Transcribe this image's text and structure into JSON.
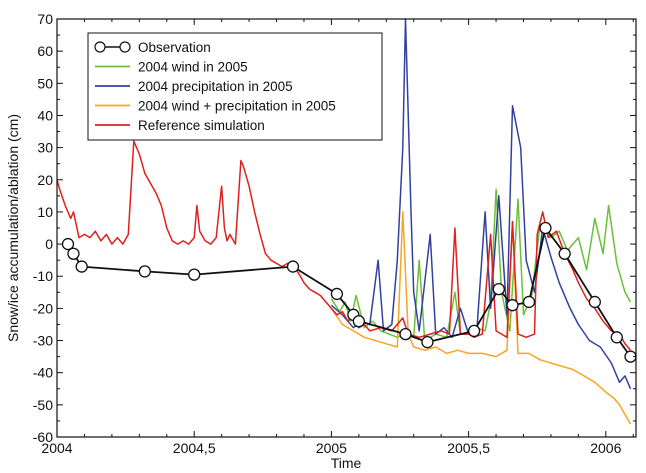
{
  "chart_data": {
    "type": "line",
    "title": "",
    "xlabel": "Time",
    "ylabel": "Snow/ice accumulation/ablation (cm)",
    "xlim": [
      2004.0,
      2006.11
    ],
    "ylim": [
      -60,
      70
    ],
    "x_ticks": [
      {
        "value": 2004.0,
        "label": "2004"
      },
      {
        "value": 2004.5,
        "label": "2004,5"
      },
      {
        "value": 2005.0,
        "label": "2005"
      },
      {
        "value": 2005.5,
        "label": "2005,5"
      },
      {
        "value": 2006.0,
        "label": "2006"
      }
    ],
    "y_ticks": [
      {
        "value": 70,
        "label": "70"
      },
      {
        "value": 60,
        "label": "60"
      },
      {
        "value": 50,
        "label": "50"
      },
      {
        "value": 40,
        "label": "40"
      },
      {
        "value": 30,
        "label": "30"
      },
      {
        "value": 20,
        "label": "20"
      },
      {
        "value": 10,
        "label": "10"
      },
      {
        "value": 0,
        "label": "0"
      },
      {
        "value": -10,
        "label": "-10"
      },
      {
        "value": -20,
        "label": "-20"
      },
      {
        "value": -30,
        "label": "-30"
      },
      {
        "value": -40,
        "label": "-40"
      },
      {
        "value": -50,
        "label": "-50"
      },
      {
        "value": -60,
        "label": "-60"
      }
    ],
    "grid": false,
    "legend_position": "top-left",
    "series": [
      {
        "name": "Observation",
        "color": "#111111",
        "marker": "open-circle",
        "points": [
          [
            2004.04,
            0
          ],
          [
            2004.06,
            -3
          ],
          [
            2004.09,
            -7
          ],
          [
            2004.32,
            -8.5
          ],
          [
            2004.5,
            -9.5
          ],
          [
            2004.86,
            -7
          ],
          [
            2005.02,
            -15.5
          ],
          [
            2005.08,
            -22
          ],
          [
            2005.1,
            -24
          ],
          [
            2005.27,
            -28
          ],
          [
            2005.35,
            -30.5
          ],
          [
            2005.52,
            -27
          ],
          [
            2005.61,
            -14
          ],
          [
            2005.66,
            -19
          ],
          [
            2005.72,
            -18
          ],
          [
            2005.78,
            5
          ],
          [
            2005.85,
            -3
          ],
          [
            2005.96,
            -18
          ],
          [
            2006.04,
            -29
          ],
          [
            2006.09,
            -35
          ]
        ]
      },
      {
        "name": "2004 wind in 2005",
        "color": "#6cbf3a",
        "points": [
          [
            2005.0,
            -17
          ],
          [
            2005.03,
            -21
          ],
          [
            2005.05,
            -18
          ],
          [
            2005.07,
            -24
          ],
          [
            2005.09,
            -16
          ],
          [
            2005.12,
            -26
          ],
          [
            2005.15,
            -24
          ],
          [
            2005.18,
            -27
          ],
          [
            2005.21,
            -28
          ],
          [
            2005.24,
            -29
          ],
          [
            2005.27,
            -28
          ],
          [
            2005.3,
            -29
          ],
          [
            2005.32,
            -5
          ],
          [
            2005.34,
            -30
          ],
          [
            2005.38,
            -28
          ],
          [
            2005.42,
            -29
          ],
          [
            2005.45,
            -15
          ],
          [
            2005.47,
            -28
          ],
          [
            2005.5,
            -28
          ],
          [
            2005.53,
            -26
          ],
          [
            2005.56,
            -27
          ],
          [
            2005.58,
            -18
          ],
          [
            2005.6,
            17
          ],
          [
            2005.62,
            -15
          ],
          [
            2005.65,
            -27
          ],
          [
            2005.68,
            14
          ],
          [
            2005.7,
            -22
          ],
          [
            2005.73,
            -16
          ],
          [
            2005.76,
            6
          ],
          [
            2005.8,
            2
          ],
          [
            2005.83,
            4
          ],
          [
            2005.86,
            -2
          ],
          [
            2005.9,
            2
          ],
          [
            2005.93,
            -8
          ],
          [
            2005.96,
            8
          ],
          [
            2005.99,
            -3
          ],
          [
            2006.01,
            12
          ],
          [
            2006.04,
            -6
          ],
          [
            2006.07,
            -15
          ],
          [
            2006.09,
            -18
          ]
        ]
      },
      {
        "name": "2004 precipitation in 2005",
        "color": "#3340a0",
        "points": [
          [
            2005.0,
            -19
          ],
          [
            2005.04,
            -22
          ],
          [
            2005.08,
            -26
          ],
          [
            2005.11,
            -24
          ],
          [
            2005.14,
            -25
          ],
          [
            2005.17,
            -5
          ],
          [
            2005.19,
            -27
          ],
          [
            2005.22,
            -25
          ],
          [
            2005.24,
            -5
          ],
          [
            2005.26,
            30
          ],
          [
            2005.27,
            70
          ],
          [
            2005.29,
            10
          ],
          [
            2005.3,
            -15
          ],
          [
            2005.32,
            -27
          ],
          [
            2005.36,
            3
          ],
          [
            2005.38,
            -28
          ],
          [
            2005.41,
            -26
          ],
          [
            2005.44,
            -29
          ],
          [
            2005.47,
            -20
          ],
          [
            2005.5,
            -28
          ],
          [
            2005.53,
            -27
          ],
          [
            2005.56,
            10
          ],
          [
            2005.58,
            -20
          ],
          [
            2005.61,
            15
          ],
          [
            2005.64,
            -22
          ],
          [
            2005.66,
            43
          ],
          [
            2005.69,
            30
          ],
          [
            2005.71,
            -5
          ],
          [
            2005.74,
            -15
          ],
          [
            2005.77,
            5
          ],
          [
            2005.8,
            -4
          ],
          [
            2005.83,
            -12
          ],
          [
            2005.87,
            -20
          ],
          [
            2005.9,
            -25
          ],
          [
            2005.94,
            -30
          ],
          [
            2005.98,
            -32
          ],
          [
            2006.02,
            -37
          ],
          [
            2006.05,
            -43
          ],
          [
            2006.07,
            -41
          ],
          [
            2006.09,
            -45
          ]
        ]
      },
      {
        "name": "2004 wind + precipitation in 2005",
        "color": "#f5a623",
        "points": [
          [
            2005.0,
            -20
          ],
          [
            2005.04,
            -25
          ],
          [
            2005.08,
            -27
          ],
          [
            2005.12,
            -29
          ],
          [
            2005.16,
            -30
          ],
          [
            2005.2,
            -31
          ],
          [
            2005.24,
            -32
          ],
          [
            2005.26,
            10
          ],
          [
            2005.28,
            -28
          ],
          [
            2005.3,
            -32
          ],
          [
            2005.34,
            -33
          ],
          [
            2005.38,
            -32
          ],
          [
            2005.42,
            -34
          ],
          [
            2005.46,
            -33
          ],
          [
            2005.5,
            -34
          ],
          [
            2005.55,
            -34
          ],
          [
            2005.6,
            -35
          ],
          [
            2005.64,
            -33
          ],
          [
            2005.66,
            7
          ],
          [
            2005.68,
            -34
          ],
          [
            2005.72,
            -34
          ],
          [
            2005.76,
            -36
          ],
          [
            2005.8,
            -37
          ],
          [
            2005.84,
            -38
          ],
          [
            2005.88,
            -39
          ],
          [
            2005.92,
            -41
          ],
          [
            2005.96,
            -43
          ],
          [
            2006.0,
            -46
          ],
          [
            2006.03,
            -48
          ],
          [
            2006.05,
            -50
          ],
          [
            2006.07,
            -53
          ],
          [
            2006.09,
            -56
          ]
        ]
      },
      {
        "name": "Reference simulation",
        "color": "#e0201c",
        "points": [
          [
            2004.0,
            20
          ],
          [
            2004.01,
            17
          ],
          [
            2004.03,
            12
          ],
          [
            2004.05,
            8
          ],
          [
            2004.06,
            10
          ],
          [
            2004.08,
            2
          ],
          [
            2004.1,
            3
          ],
          [
            2004.12,
            2
          ],
          [
            2004.14,
            4
          ],
          [
            2004.16,
            1
          ],
          [
            2004.18,
            3
          ],
          [
            2004.2,
            0
          ],
          [
            2004.22,
            2
          ],
          [
            2004.24,
            0
          ],
          [
            2004.26,
            3
          ],
          [
            2004.28,
            32
          ],
          [
            2004.3,
            28
          ],
          [
            2004.31,
            25
          ],
          [
            2004.32,
            22
          ],
          [
            2004.34,
            19
          ],
          [
            2004.36,
            16
          ],
          [
            2004.38,
            12
          ],
          [
            2004.4,
            5
          ],
          [
            2004.42,
            1
          ],
          [
            2004.44,
            0
          ],
          [
            2004.46,
            1
          ],
          [
            2004.48,
            0
          ],
          [
            2004.5,
            2
          ],
          [
            2004.51,
            12
          ],
          [
            2004.52,
            4
          ],
          [
            2004.54,
            1
          ],
          [
            2004.56,
            0
          ],
          [
            2004.58,
            2
          ],
          [
            2004.6,
            18
          ],
          [
            2004.61,
            5
          ],
          [
            2004.62,
            1
          ],
          [
            2004.63,
            3
          ],
          [
            2004.65,
            0
          ],
          [
            2004.67,
            26
          ],
          [
            2004.68,
            24
          ],
          [
            2004.7,
            18
          ],
          [
            2004.72,
            10
          ],
          [
            2004.74,
            3
          ],
          [
            2004.76,
            -3
          ],
          [
            2004.78,
            -5
          ],
          [
            2004.8,
            -6
          ],
          [
            2004.82,
            -7
          ],
          [
            2004.84,
            -6
          ],
          [
            2004.86,
            -7
          ],
          [
            2004.88,
            -9
          ],
          [
            2004.9,
            -12
          ],
          [
            2004.92,
            -14
          ],
          [
            2004.94,
            -15
          ],
          [
            2004.96,
            -16
          ],
          [
            2004.98,
            -18
          ],
          [
            2005.0,
            -20
          ],
          [
            2005.02,
            -22
          ],
          [
            2005.04,
            -21
          ],
          [
            2005.06,
            -24
          ],
          [
            2005.08,
            -22
          ],
          [
            2005.1,
            -26
          ],
          [
            2005.12,
            -25
          ],
          [
            2005.14,
            -27
          ],
          [
            2005.18,
            -26
          ],
          [
            2005.22,
            -27
          ],
          [
            2005.26,
            -23
          ],
          [
            2005.28,
            -28
          ],
          [
            2005.32,
            -29
          ],
          [
            2005.36,
            -28
          ],
          [
            2005.4,
            -27
          ],
          [
            2005.43,
            -28
          ],
          [
            2005.45,
            5
          ],
          [
            2005.47,
            -28
          ],
          [
            2005.5,
            -28
          ],
          [
            2005.52,
            -29
          ],
          [
            2005.55,
            -28
          ],
          [
            2005.58,
            3
          ],
          [
            2005.6,
            -27
          ],
          [
            2005.64,
            -29
          ],
          [
            2005.66,
            7
          ],
          [
            2005.68,
            -28
          ],
          [
            2005.71,
            -29
          ],
          [
            2005.74,
            -28
          ],
          [
            2005.75,
            3
          ],
          [
            2005.77,
            10
          ],
          [
            2005.79,
            2
          ],
          [
            2005.82,
            4
          ],
          [
            2005.85,
            -3
          ],
          [
            2005.88,
            -8
          ],
          [
            2005.9,
            -12
          ],
          [
            2005.93,
            -17
          ],
          [
            2005.96,
            -20
          ],
          [
            2005.99,
            -24
          ],
          [
            2006.02,
            -27
          ],
          [
            2006.05,
            -28
          ],
          [
            2006.07,
            -31
          ],
          [
            2006.09,
            -33
          ]
        ]
      }
    ]
  }
}
